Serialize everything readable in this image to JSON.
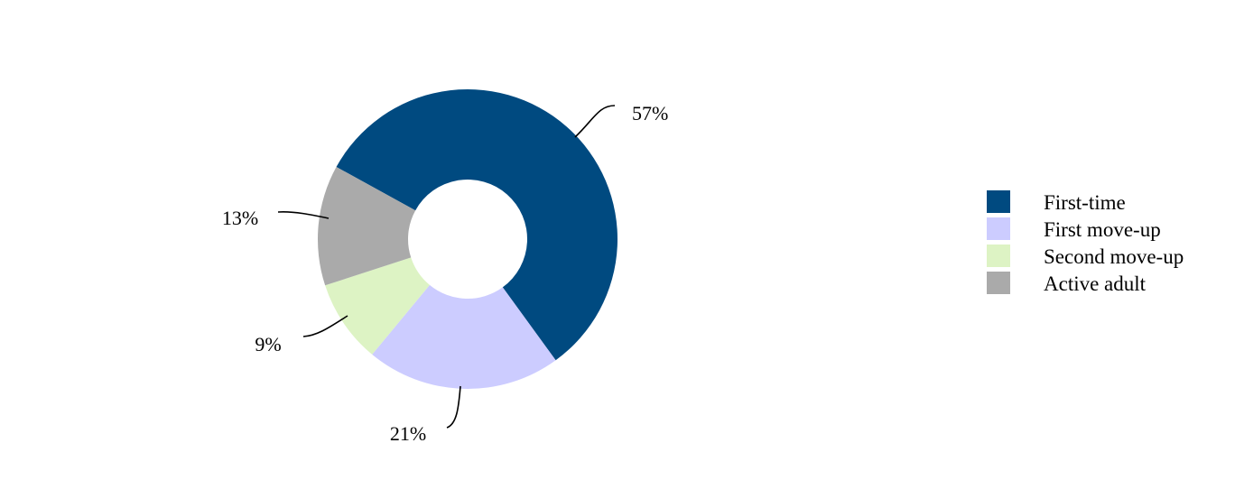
{
  "chart_data": {
    "type": "pie",
    "donut": true,
    "legend_position": "right",
    "slices": [
      {
        "name": "First-time",
        "value": 57,
        "label": "57%",
        "color": "#004a80"
      },
      {
        "name": "First move-up",
        "value": 21,
        "label": "21%",
        "color": "#ccccff"
      },
      {
        "name": "Second move-up",
        "value": 9,
        "label": "9%",
        "color": "#ddf3c4"
      },
      {
        "name": "Active adult",
        "value": 13,
        "label": "13%",
        "color": "#aaaaaa"
      }
    ]
  }
}
